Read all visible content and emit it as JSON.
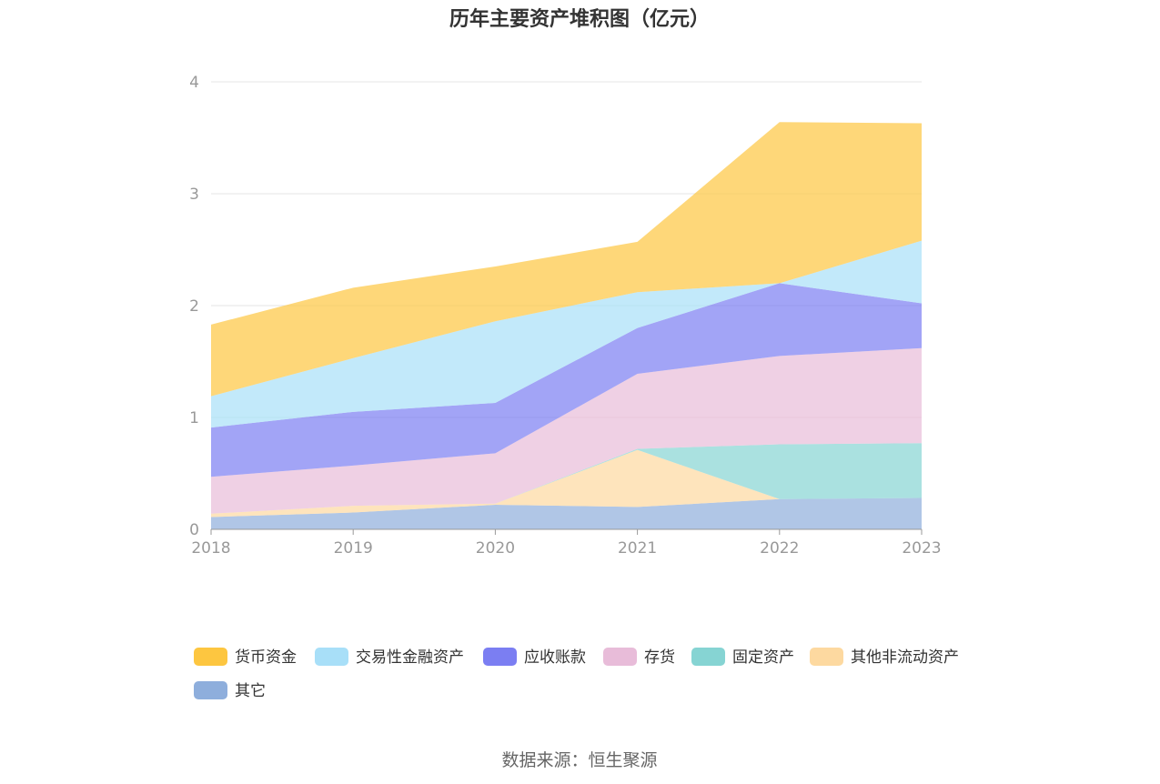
{
  "chart_data": {
    "type": "area",
    "stacked": true,
    "title": "历年主要资产堆积图（亿元）",
    "x": [
      "2018",
      "2019",
      "2020",
      "2021",
      "2022",
      "2023"
    ],
    "ylim": [
      0,
      4
    ],
    "yticks": [
      "0",
      "1",
      "2",
      "3",
      "4"
    ],
    "grid": true,
    "legend_position": "bottom",
    "series": [
      {
        "name": "其它",
        "color": "#8eaedc",
        "values": [
          0.11,
          0.15,
          0.22,
          0.2,
          0.27,
          0.28
        ]
      },
      {
        "name": "其他非流动资产",
        "color": "#fdd9a0",
        "values": [
          0.03,
          0.06,
          0.01,
          0.51,
          0.0,
          0.0
        ]
      },
      {
        "name": "固定资产",
        "color": "#86d4d3",
        "values": [
          0.0,
          0.0,
          0.0,
          0.01,
          0.49,
          0.49
        ]
      },
      {
        "name": "存货",
        "color": "#e8bcd9",
        "values": [
          0.33,
          0.36,
          0.45,
          0.67,
          0.79,
          0.85
        ]
      },
      {
        "name": "应收账款",
        "color": "#7b7ef2",
        "values": [
          0.44,
          0.48,
          0.45,
          0.41,
          0.65,
          0.4
        ]
      },
      {
        "name": "交易性金融资产",
        "color": "#a8dff8",
        "values": [
          0.28,
          0.48,
          0.73,
          0.32,
          0.0,
          0.56
        ]
      },
      {
        "name": "货币资金",
        "color": "#fdc640",
        "values": [
          0.64,
          0.63,
          0.49,
          0.45,
          1.44,
          1.05
        ]
      }
    ],
    "legend_order": [
      "货币资金",
      "交易性金融资产",
      "应收账款",
      "存货",
      "固定资产",
      "其他非流动资产",
      "其它"
    ]
  },
  "footer": {
    "source": "数据来源：恒生聚源"
  }
}
